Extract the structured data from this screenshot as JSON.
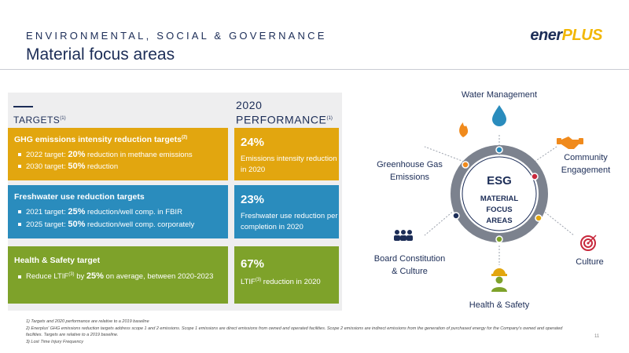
{
  "header": {
    "subtitle": "ENVIRONMENTAL, SOCIAL & GOVERNANCE",
    "title": "Material focus areas",
    "logo_a": "ener",
    "logo_b": "PLUS"
  },
  "columns": {
    "targets": "TARGETS",
    "targets_note": "(1)",
    "performance_line1": "2020",
    "performance_line2": "PERFORMANCE",
    "performance_note": "(1)"
  },
  "rows": [
    {
      "title": "GHG emissions intensity reduction targets",
      "title_note": "(2)",
      "bullets": [
        {
          "pre": "2022 target: ",
          "bold": "20%",
          "post": " reduction in methane emissions"
        },
        {
          "pre": "2030 target: ",
          "bold": "50%",
          "post": " reduction"
        }
      ],
      "perf_value": "24%",
      "perf_desc": "Emissions intensity reduction in 2020"
    },
    {
      "title": "Freshwater use reduction targets",
      "bullets": [
        {
          "pre": "2021 target: ",
          "bold": "25%",
          "post": " reduction/well comp. in FBIR"
        },
        {
          "pre": "2025 target: ",
          "bold": "50%",
          "post": " reduction/well comp. corporately"
        }
      ],
      "perf_value": "23%",
      "perf_desc": "Freshwater use reduction per completion in 2020"
    },
    {
      "title": "Health & Safety target",
      "bullets": [
        {
          "pre": "Reduce LTIF",
          "note": "(3)",
          "mid": " by ",
          "bold": "25%",
          "post": " on average, between 2020-2023"
        }
      ],
      "perf_value": "67%",
      "perf_desc_pre": "LTIF",
      "perf_desc_note": "(3)",
      "perf_desc_post": " reduction in 2020"
    }
  ],
  "esg": {
    "center": [
      "ESG",
      "MATERIAL",
      "FOCUS",
      "AREAS"
    ],
    "areas": {
      "water": "Water Management",
      "ghg_1": "Greenhouse Gas",
      "ghg_2": "Emissions",
      "community_1": "Community",
      "community_2": "Engagement",
      "board_1": "Board Constitution",
      "board_2": "& Culture",
      "culture": "Culture",
      "health": "Health & Safety"
    },
    "icons": [
      "water-drop-icon",
      "flame-icon",
      "handshake-icon",
      "people-group-icon",
      "target-icon",
      "worker-hardhat-icon"
    ],
    "colors": {
      "navy": "#1c2d57",
      "gold": "#e2a60f",
      "blue": "#2a8cbd",
      "green": "#7ea22a",
      "orange": "#f08a1c",
      "red": "#c8283c"
    }
  },
  "footnotes": [
    "1)   Targets and 2020 performance are relative to a 2019 baseline",
    "2)   Enerplus' GHG emissions reduction targets address scope 1 and 2 emissions. Scope 1 emissions are direct emissions from owned and operated facilities. Scope 2 emissions are indirect emissions from the generation of purchased energy for the Company's owned and operated facilities. Targets are relative to a 2019 baseline.",
    "3)   Lost Time Injury Frequency"
  ],
  "page_number": "11"
}
